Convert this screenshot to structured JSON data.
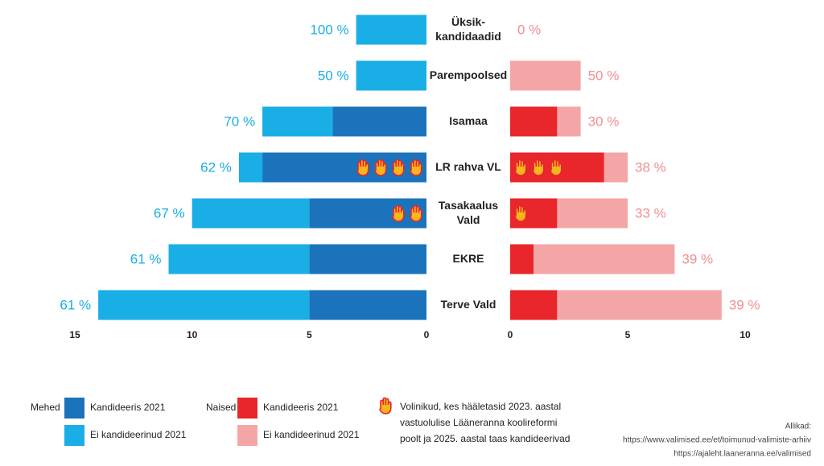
{
  "chart_data": {
    "type": "butterfly_bar",
    "categories": [
      "Üksik-\nkandidaadid",
      "Parempoolsed",
      "Isamaa",
      "LR rahva VL",
      "Tasakaalus\nVald",
      "EKRE",
      "Terve Vald"
    ],
    "left": {
      "name": "Mehed",
      "xlim": [
        15,
        0
      ],
      "xticks": [
        15,
        10,
        5,
        0
      ],
      "series": [
        {
          "name": "Kandideeris 2021",
          "color": "#1b74bb",
          "values": [
            0,
            0,
            4,
            7,
            5,
            5,
            5
          ]
        },
        {
          "name": "Ei kandideerinud 2021",
          "color": "#1aaee6",
          "values": [
            3,
            3,
            3,
            1,
            5,
            6,
            9
          ]
        }
      ],
      "shares": {
        "color": "#1aaee6",
        "values": [
          100,
          50,
          70,
          62,
          67,
          61,
          61
        ],
        "value_labels": [
          "100 %",
          "50 %",
          "70 %",
          "62 %",
          "67 %",
          "61 %",
          "61 %"
        ]
      },
      "hands": [
        0,
        0,
        0,
        4,
        2,
        0,
        0
      ]
    },
    "right": {
      "name": "Naised",
      "xlim": [
        0,
        10
      ],
      "xticks": [
        0,
        5,
        10
      ],
      "series": [
        {
          "name": "Kandideeris 2021",
          "color": "#e8262b",
          "values": [
            0,
            0,
            2,
            4,
            2,
            1,
            2
          ]
        },
        {
          "name": "Ei kandideerinud 2021",
          "color": "#f4a6a7",
          "values": [
            0,
            3,
            1,
            1,
            3,
            6,
            7
          ]
        }
      ],
      "shares": {
        "color": "#f28e90",
        "values": [
          0,
          50,
          30,
          38,
          33,
          39,
          39
        ],
        "value_labels": [
          "0 %",
          "50 %",
          "30 %",
          "38 %",
          "33 %",
          "39 %",
          "39 %"
        ]
      },
      "hands": [
        0,
        0,
        0,
        3,
        1,
        0,
        0
      ]
    },
    "hand_legend": [
      "Volinikud, kes hääletasid 2023. aastal",
      "vastuolulise Lääneranna koolireformi",
      "poolt ja 2025. aastal taas kandideerivad"
    ],
    "sources": [
      "Allikad:",
      "https://www.valimised.ee/et/toimunud-valimiste-arhiiv",
      "https://ajaleht.laaneranna.ee/valimised"
    ]
  }
}
